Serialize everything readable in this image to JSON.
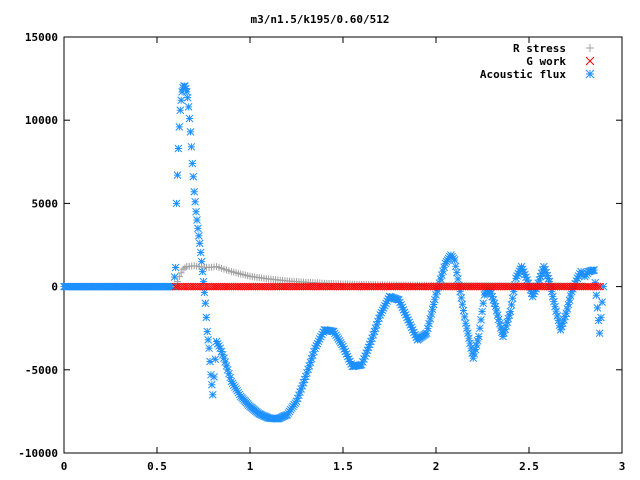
{
  "chart_data": {
    "type": "scatter",
    "title": "m3/n1.5/k195/0.60/512",
    "xlabel": "",
    "ylabel": "",
    "xlim": [
      0,
      3
    ],
    "ylim": [
      -10000,
      15000
    ],
    "x_ticks": [
      0,
      0.5,
      1,
      1.5,
      2,
      2.5,
      3
    ],
    "x_tick_labels": [
      "0",
      "0.5",
      "1",
      "1.5",
      "2",
      "2.5",
      "3"
    ],
    "y_ticks": [
      -10000,
      -5000,
      0,
      5000,
      10000,
      15000
    ],
    "y_tick_labels": [
      "-10000",
      "-5000",
      "0",
      "5000",
      "10000",
      "15000"
    ],
    "grid": false,
    "legend_position": "top-right",
    "series": [
      {
        "name": "R stress",
        "marker": "plus",
        "color": "#a0a0a0",
        "points": [
          [
            0.6,
            0
          ],
          [
            0.62,
            600
          ],
          [
            0.64,
            1050
          ],
          [
            0.66,
            1200
          ],
          [
            0.7,
            1250
          ],
          [
            0.74,
            1180
          ],
          [
            0.78,
            1150
          ],
          [
            0.82,
            1200
          ],
          [
            0.86,
            1050
          ],
          [
            0.9,
            900
          ],
          [
            0.95,
            760
          ],
          [
            1.0,
            620
          ],
          [
            1.1,
            460
          ],
          [
            1.2,
            340
          ],
          [
            1.3,
            260
          ],
          [
            1.4,
            200
          ],
          [
            1.5,
            160
          ],
          [
            1.6,
            130
          ],
          [
            1.7,
            110
          ],
          [
            1.8,
            90
          ],
          [
            1.9,
            80
          ],
          [
            2.0,
            70
          ],
          [
            2.2,
            60
          ],
          [
            2.4,
            50
          ],
          [
            2.6,
            40
          ],
          [
            2.8,
            40
          ]
        ]
      },
      {
        "name": "G work",
        "marker": "x",
        "color": "#ff0000",
        "points": [
          [
            0.6,
            0
          ],
          [
            0.7,
            0
          ],
          [
            0.8,
            0
          ],
          [
            1.0,
            0
          ],
          [
            1.2,
            0
          ],
          [
            1.4,
            0
          ],
          [
            1.6,
            0
          ],
          [
            1.8,
            0
          ],
          [
            2.0,
            0
          ],
          [
            2.2,
            0
          ],
          [
            2.4,
            0
          ],
          [
            2.6,
            0
          ],
          [
            2.8,
            0
          ],
          [
            2.88,
            0
          ]
        ]
      },
      {
        "name": "Acoustic flux",
        "marker": "star",
        "color": "#1e90ff",
        "points": [
          [
            0,
            0
          ],
          [
            0.1,
            0
          ],
          [
            0.2,
            0
          ],
          [
            0.3,
            0
          ],
          [
            0.4,
            0
          ],
          [
            0.5,
            0
          ],
          [
            0.59,
            0
          ],
          [
            0.6,
            1150
          ],
          [
            0.605,
            5000
          ],
          [
            0.61,
            6700
          ],
          [
            0.615,
            8300
          ],
          [
            0.62,
            9600
          ],
          [
            0.625,
            10600
          ],
          [
            0.63,
            11200
          ],
          [
            0.635,
            11700
          ],
          [
            0.64,
            11950
          ],
          [
            0.645,
            12050
          ],
          [
            0.65,
            12050
          ],
          [
            0.655,
            11900
          ],
          [
            0.66,
            11700
          ],
          [
            0.665,
            11350
          ],
          [
            0.67,
            10800
          ],
          [
            0.675,
            10100
          ],
          [
            0.68,
            9300
          ],
          [
            0.685,
            8400
          ],
          [
            0.69,
            7400
          ],
          [
            0.695,
            6600
          ],
          [
            0.7,
            5700
          ],
          [
            0.71,
            4500
          ],
          [
            0.72,
            3500
          ],
          [
            0.73,
            2600
          ],
          [
            0.74,
            1500
          ],
          [
            0.75,
            300
          ],
          [
            0.76,
            -1000
          ],
          [
            0.77,
            -2700
          ],
          [
            0.78,
            -3700
          ],
          [
            0.79,
            -5300
          ],
          [
            0.8,
            -6500
          ],
          [
            0.82,
            -3300
          ],
          [
            0.84,
            -3700
          ],
          [
            0.86,
            -4300
          ],
          [
            0.88,
            -5000
          ],
          [
            0.9,
            -5700
          ],
          [
            0.95,
            -6600
          ],
          [
            1.0,
            -7200
          ],
          [
            1.05,
            -7650
          ],
          [
            1.1,
            -7900
          ],
          [
            1.15,
            -7950
          ],
          [
            1.2,
            -7700
          ],
          [
            1.25,
            -6900
          ],
          [
            1.3,
            -5400
          ],
          [
            1.35,
            -3700
          ],
          [
            1.4,
            -2600
          ],
          [
            1.45,
            -2700
          ],
          [
            1.5,
            -3600
          ],
          [
            1.55,
            -4800
          ],
          [
            1.6,
            -4700
          ],
          [
            1.65,
            -3300
          ],
          [
            1.7,
            -1700
          ],
          [
            1.75,
            -600
          ],
          [
            1.8,
            -800
          ],
          [
            1.85,
            -2000
          ],
          [
            1.9,
            -3200
          ],
          [
            1.95,
            -2800
          ],
          [
            2.0,
            -500
          ],
          [
            2.05,
            1400
          ],
          [
            2.08,
            1900
          ],
          [
            2.1,
            1600
          ],
          [
            2.13,
            -300
          ],
          [
            2.16,
            -2200
          ],
          [
            2.2,
            -4300
          ],
          [
            2.23,
            -3000
          ],
          [
            2.26,
            -500
          ],
          [
            2.29,
            -200
          ],
          [
            2.32,
            -1200
          ],
          [
            2.36,
            -3000
          ],
          [
            2.4,
            -1500
          ],
          [
            2.43,
            500
          ],
          [
            2.46,
            1200
          ],
          [
            2.49,
            400
          ],
          [
            2.52,
            -600
          ],
          [
            2.55,
            200
          ],
          [
            2.58,
            1200
          ],
          [
            2.61,
            300
          ],
          [
            2.64,
            -1200
          ],
          [
            2.67,
            -2600
          ],
          [
            2.7,
            -1600
          ],
          [
            2.73,
            -300
          ],
          [
            2.76,
            500
          ],
          [
            2.78,
            900
          ],
          [
            2.8,
            600
          ],
          [
            2.82,
            900
          ],
          [
            2.85,
            1000
          ],
          [
            2.88,
            -2800
          ],
          [
            2.9,
            0
          ]
        ]
      }
    ]
  }
}
